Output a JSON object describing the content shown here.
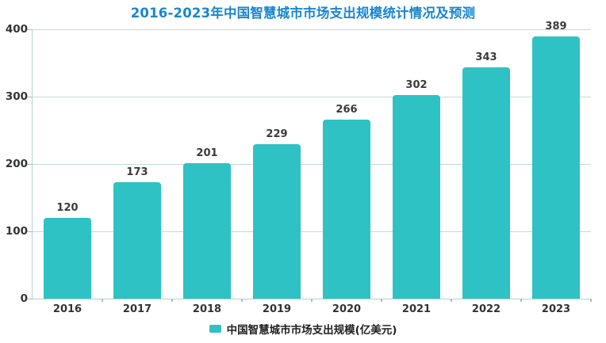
{
  "title": {
    "text": "2016-2023年中国智慧城市市场支出规模统计情况及预测",
    "color": "#1786d1"
  },
  "chart_data": {
    "type": "bar",
    "title": "2016-2023年中国智慧城市市场支出规模统计情况及预测",
    "categories": [
      "2016",
      "2017",
      "2018",
      "2019",
      "2020",
      "2021",
      "2022",
      "2023"
    ],
    "values": [
      120,
      173,
      201,
      229,
      266,
      302,
      343,
      389
    ],
    "series_name": "中国智慧城市市场支出规模(亿美元)",
    "xlabel": "",
    "ylabel": "",
    "ylim": [
      0,
      400
    ],
    "yticks": [
      0,
      100,
      200,
      300,
      400
    ],
    "grid": true,
    "legend_position": "bottom",
    "bar_color": "#2ec2c4"
  },
  "legend": {
    "label": "中国智慧城市市场支出规模(亿美元)",
    "swatch_color": "#2ec2c4"
  },
  "colors": {
    "title_blue": "#1786d1",
    "bar_teal": "#2ec2c4",
    "gridline": "#c3dbdf",
    "axis": "#b3d2d7",
    "text_dark": "#333333"
  }
}
